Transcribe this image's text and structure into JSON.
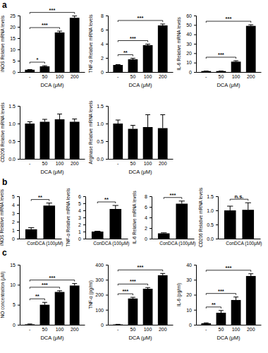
{
  "panel_labels": [
    "a",
    "b",
    "c"
  ],
  "chart_data": [
    {
      "type": "bar",
      "y_label": "iNOS Relative mRNA levels",
      "x_label": "DCA (μM)",
      "categories": [
        "-",
        "50",
        "100",
        "200"
      ],
      "values": [
        1,
        2.5,
        17.5,
        24
      ],
      "errors": [
        0.1,
        0.3,
        0.6,
        0.8
      ],
      "significance": [
        null,
        "*",
        "***",
        "***"
      ],
      "color": "#000000",
      "ylim": [
        0,
        25
      ],
      "yticks": [
        0,
        5,
        10,
        15,
        20,
        25
      ]
    },
    {
      "type": "bar",
      "y_label": "TNF-α Relative mRNA levels",
      "x_label": "DCA (μM)",
      "categories": [
        "-",
        "50",
        "100",
        "200"
      ],
      "values": [
        1,
        1.8,
        3.8,
        6.6
      ],
      "errors": [
        0.05,
        0.15,
        0.15,
        0.2
      ],
      "significance": [
        null,
        "**",
        "***",
        "***"
      ],
      "color": "#000000",
      "ylim": [
        0,
        8
      ],
      "yticks": [
        0,
        2,
        4,
        6,
        8
      ]
    },
    {
      "type": "bar",
      "y_label": "IL-6 Relative mRNA levels",
      "x_label": "DCA (μM)",
      "categories": [
        "-",
        "50",
        "100",
        "200"
      ],
      "values": [
        1,
        1,
        11,
        49
      ],
      "errors": [
        0.1,
        0.1,
        1,
        1.2
      ],
      "significance": [
        null,
        null,
        "***",
        "***"
      ],
      "color": "#000000",
      "ylim": [
        0,
        60
      ],
      "yticks": [
        0,
        10,
        20,
        30,
        40,
        50,
        60
      ]
    },
    {
      "type": "bar",
      "y_label": "CD206 Relative mRNA levels",
      "x_label": "DCA (μM)",
      "categories": [
        "-",
        "50",
        "100",
        "200"
      ],
      "values": [
        1,
        1.05,
        1.12,
        1.05
      ],
      "errors": [
        0.05,
        0.07,
        0.15,
        0.08
      ],
      "color": "#000000",
      "ylim": [
        0,
        1.5
      ],
      "yticks": [
        {
          "value": 0,
          "label": "0.0"
        },
        0.5,
        {
          "value": 1,
          "label": "1.0"
        },
        1.5
      ]
    },
    {
      "type": "bar",
      "y_label": "Arginase Relative mRNA levels",
      "x_label": "DCA (μM)",
      "categories": [
        "-",
        "50",
        "100",
        "200"
      ],
      "values": [
        1,
        0.85,
        0.9,
        0.87
      ],
      "errors": [
        0.1,
        0.1,
        0.35,
        0.38
      ],
      "color": "#000000",
      "ylim": [
        0,
        1.5
      ],
      "yticks": [
        {
          "value": 0,
          "label": "0.0"
        },
        0.5,
        {
          "value": 1,
          "label": "1.0"
        },
        1.5
      ]
    },
    {
      "type": "bar",
      "y_label": "iNOS Relative mRNA levels",
      "categories": [
        "Con",
        "DCA (100μM)"
      ],
      "values": [
        1.1,
        3.9
      ],
      "errors": [
        0.2,
        0.3
      ],
      "significance": [
        null,
        "**"
      ],
      "color": "#000000",
      "ylim": [
        0,
        5
      ],
      "yticks": [
        0,
        1,
        2,
        3,
        4,
        5
      ]
    },
    {
      "type": "bar",
      "y_label": "TNF-α Relative mRNA levels",
      "categories": [
        "Con",
        "DCA (100μM)"
      ],
      "values": [
        1,
        4.2
      ],
      "errors": [
        0.05,
        0.5
      ],
      "significance": [
        null,
        "**"
      ],
      "color": "#000000",
      "ylim": [
        0,
        6
      ],
      "yticks": [
        0,
        1,
        2,
        3,
        4,
        5,
        6
      ]
    },
    {
      "type": "bar",
      "y_label": "IL-6 Relative mRNA levels",
      "categories": [
        "Con",
        "DCA (100μM)"
      ],
      "values": [
        1,
        6.6
      ],
      "errors": [
        0.1,
        0.5
      ],
      "significance": [
        null,
        "***"
      ],
      "color": "#000000",
      "ylim": [
        0,
        8
      ],
      "yticks": [
        0,
        2,
        4,
        6,
        8
      ]
    },
    {
      "type": "bar",
      "y_label": "CD206 Relative mRNA levels",
      "categories": [
        "Con",
        "DCA (100μM)"
      ],
      "values": [
        1,
        1.02
      ],
      "errors": [
        0.15,
        0.25
      ],
      "significance": [
        null,
        "n.s."
      ],
      "color": "#000000",
      "ylim": [
        0,
        1.5
      ],
      "yticks": [
        {
          "value": 0,
          "label": "0.0"
        },
        0.5,
        {
          "value": 1,
          "label": "1.0"
        },
        1.5
      ]
    },
    {
      "type": "bar",
      "y_label": "NO concentration (μM)",
      "x_label": "DCA (μM)",
      "categories": [
        "-",
        "50",
        "100",
        "200"
      ],
      "values": [
        0.1,
        5,
        8.2,
        9.8
      ],
      "errors": [
        0.1,
        0.6,
        0.3,
        0.5
      ],
      "significance": [
        null,
        "**",
        "***",
        "***"
      ],
      "color": "#000000",
      "ylim": [
        0,
        15
      ],
      "yticks": [
        0,
        5,
        10,
        15
      ]
    },
    {
      "type": "bar",
      "y_label": "TNF-α (pg/ml)",
      "x_label": "DCA (μM)",
      "categories": [
        "-",
        "50",
        "100",
        "200"
      ],
      "values": [
        2,
        175,
        240,
        330
      ],
      "errors": [
        1,
        8,
        8,
        12
      ],
      "significance": [
        null,
        "***",
        "***",
        "***"
      ],
      "color": "#000000",
      "ylim": [
        0,
        400
      ],
      "yticks": [
        0,
        100,
        200,
        300,
        400
      ]
    },
    {
      "type": "bar",
      "y_label": "IL-6 (pg/ml)",
      "x_label": "DCA (μM)",
      "categories": [
        "-",
        "50",
        "100",
        "200"
      ],
      "values": [
        1,
        8,
        16.5,
        32.5
      ],
      "errors": [
        0.3,
        1.5,
        2,
        1.5
      ],
      "significance": [
        null,
        "**",
        "***",
        "***"
      ],
      "color": "#000000",
      "ylim": [
        0,
        40
      ],
      "yticks": [
        0,
        10,
        20,
        30,
        40
      ]
    }
  ]
}
